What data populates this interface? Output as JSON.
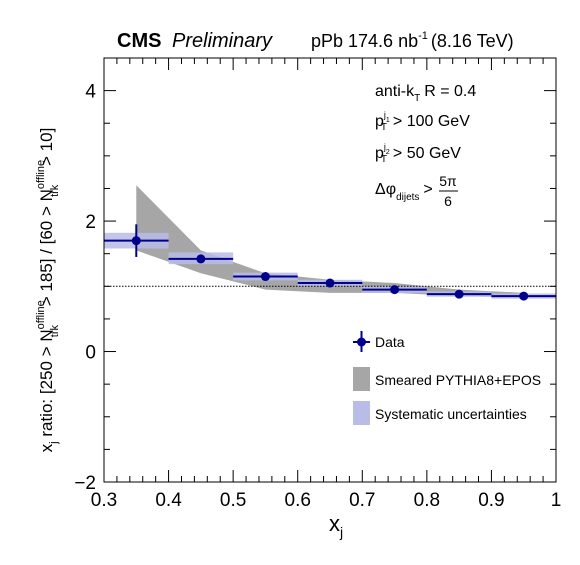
{
  "header": {
    "experiment": "CMS",
    "status": "Preliminary",
    "lumi_prefix": "pPb 174.6 nb",
    "lumi_exp": "-1",
    "lumi_suffix": "(8.16 TeV)"
  },
  "annotations": {
    "algo": "anti-k",
    "algo_sub": "T",
    "algo_R": "R = 0.4",
    "pt1": "> 100 GeV",
    "pt2": "> 50 GeV",
    "dphi_sub": "dijets",
    "dphi_num": "5π",
    "dphi_den": "6"
  },
  "chart_data": {
    "type": "scatter",
    "title": "",
    "xlabel": "x_j",
    "ylabel": "x_j ratio: [250 > N_trk^offline > 185] / [60 > N_trk^offline > 10]",
    "xlim": [
      0.3,
      1.0
    ],
    "ylim": [
      -2,
      4.5
    ],
    "x_ticks": [
      "0.3",
      "0.4",
      "0.5",
      "0.6",
      "0.7",
      "0.8",
      "0.9",
      "1"
    ],
    "y_ticks": [
      "−2",
      "0",
      "2",
      "4"
    ],
    "reference_line": 1.0,
    "grid": false,
    "legend_position": "bottom-right",
    "series": [
      {
        "name": "Data",
        "color": "#00008b",
        "points": [
          {
            "x": 0.35,
            "x_lo": 0.3,
            "x_hi": 0.4,
            "y": 1.7,
            "yerr": 0.25
          },
          {
            "x": 0.45,
            "x_lo": 0.4,
            "x_hi": 0.5,
            "y": 1.42,
            "yerr": 0.05
          },
          {
            "x": 0.55,
            "x_lo": 0.5,
            "x_hi": 0.6,
            "y": 1.15,
            "yerr": 0.03
          },
          {
            "x": 0.65,
            "x_lo": 0.6,
            "x_hi": 0.7,
            "y": 1.05,
            "yerr": 0.02
          },
          {
            "x": 0.75,
            "x_lo": 0.7,
            "x_hi": 0.8,
            "y": 0.95,
            "yerr": 0.02
          },
          {
            "x": 0.85,
            "x_lo": 0.8,
            "x_hi": 0.9,
            "y": 0.88,
            "yerr": 0.02
          },
          {
            "x": 0.95,
            "x_lo": 0.9,
            "x_hi": 1.0,
            "y": 0.85,
            "yerr": 0.02
          }
        ],
        "systematics": [
          {
            "x_lo": 0.3,
            "x_hi": 0.4,
            "y_lo": 1.58,
            "y_hi": 1.82
          },
          {
            "x_lo": 0.4,
            "x_hi": 0.5,
            "y_lo": 1.34,
            "y_hi": 1.52
          },
          {
            "x_lo": 0.5,
            "x_hi": 0.6,
            "y_lo": 1.09,
            "y_hi": 1.21
          },
          {
            "x_lo": 0.6,
            "x_hi": 0.7,
            "y_lo": 1.0,
            "y_hi": 1.1
          },
          {
            "x_lo": 0.7,
            "x_hi": 0.8,
            "y_lo": 0.9,
            "y_hi": 1.0
          },
          {
            "x_lo": 0.8,
            "x_hi": 0.9,
            "y_lo": 0.84,
            "y_hi": 0.92
          },
          {
            "x_lo": 0.9,
            "x_hi": 1.0,
            "y_lo": 0.81,
            "y_hi": 0.89
          }
        ]
      },
      {
        "name": "Smeared PYTHIA8+EPOS",
        "color": "#a6a6a6",
        "band": [
          {
            "x": 0.35,
            "lo": 1.55,
            "hi": 2.55
          },
          {
            "x": 0.45,
            "lo": 1.2,
            "hi": 1.55
          },
          {
            "x": 0.55,
            "lo": 0.95,
            "hi": 1.2
          },
          {
            "x": 0.65,
            "lo": 0.9,
            "hi": 1.1
          },
          {
            "x": 0.75,
            "lo": 0.9,
            "hi": 1.05
          },
          {
            "x": 0.85,
            "lo": 0.85,
            "hi": 0.95
          },
          {
            "x": 0.95,
            "lo": 0.83,
            "hi": 0.9
          }
        ]
      },
      {
        "name": "Systematic uncertainties",
        "color": "#b8bce6"
      }
    ]
  }
}
